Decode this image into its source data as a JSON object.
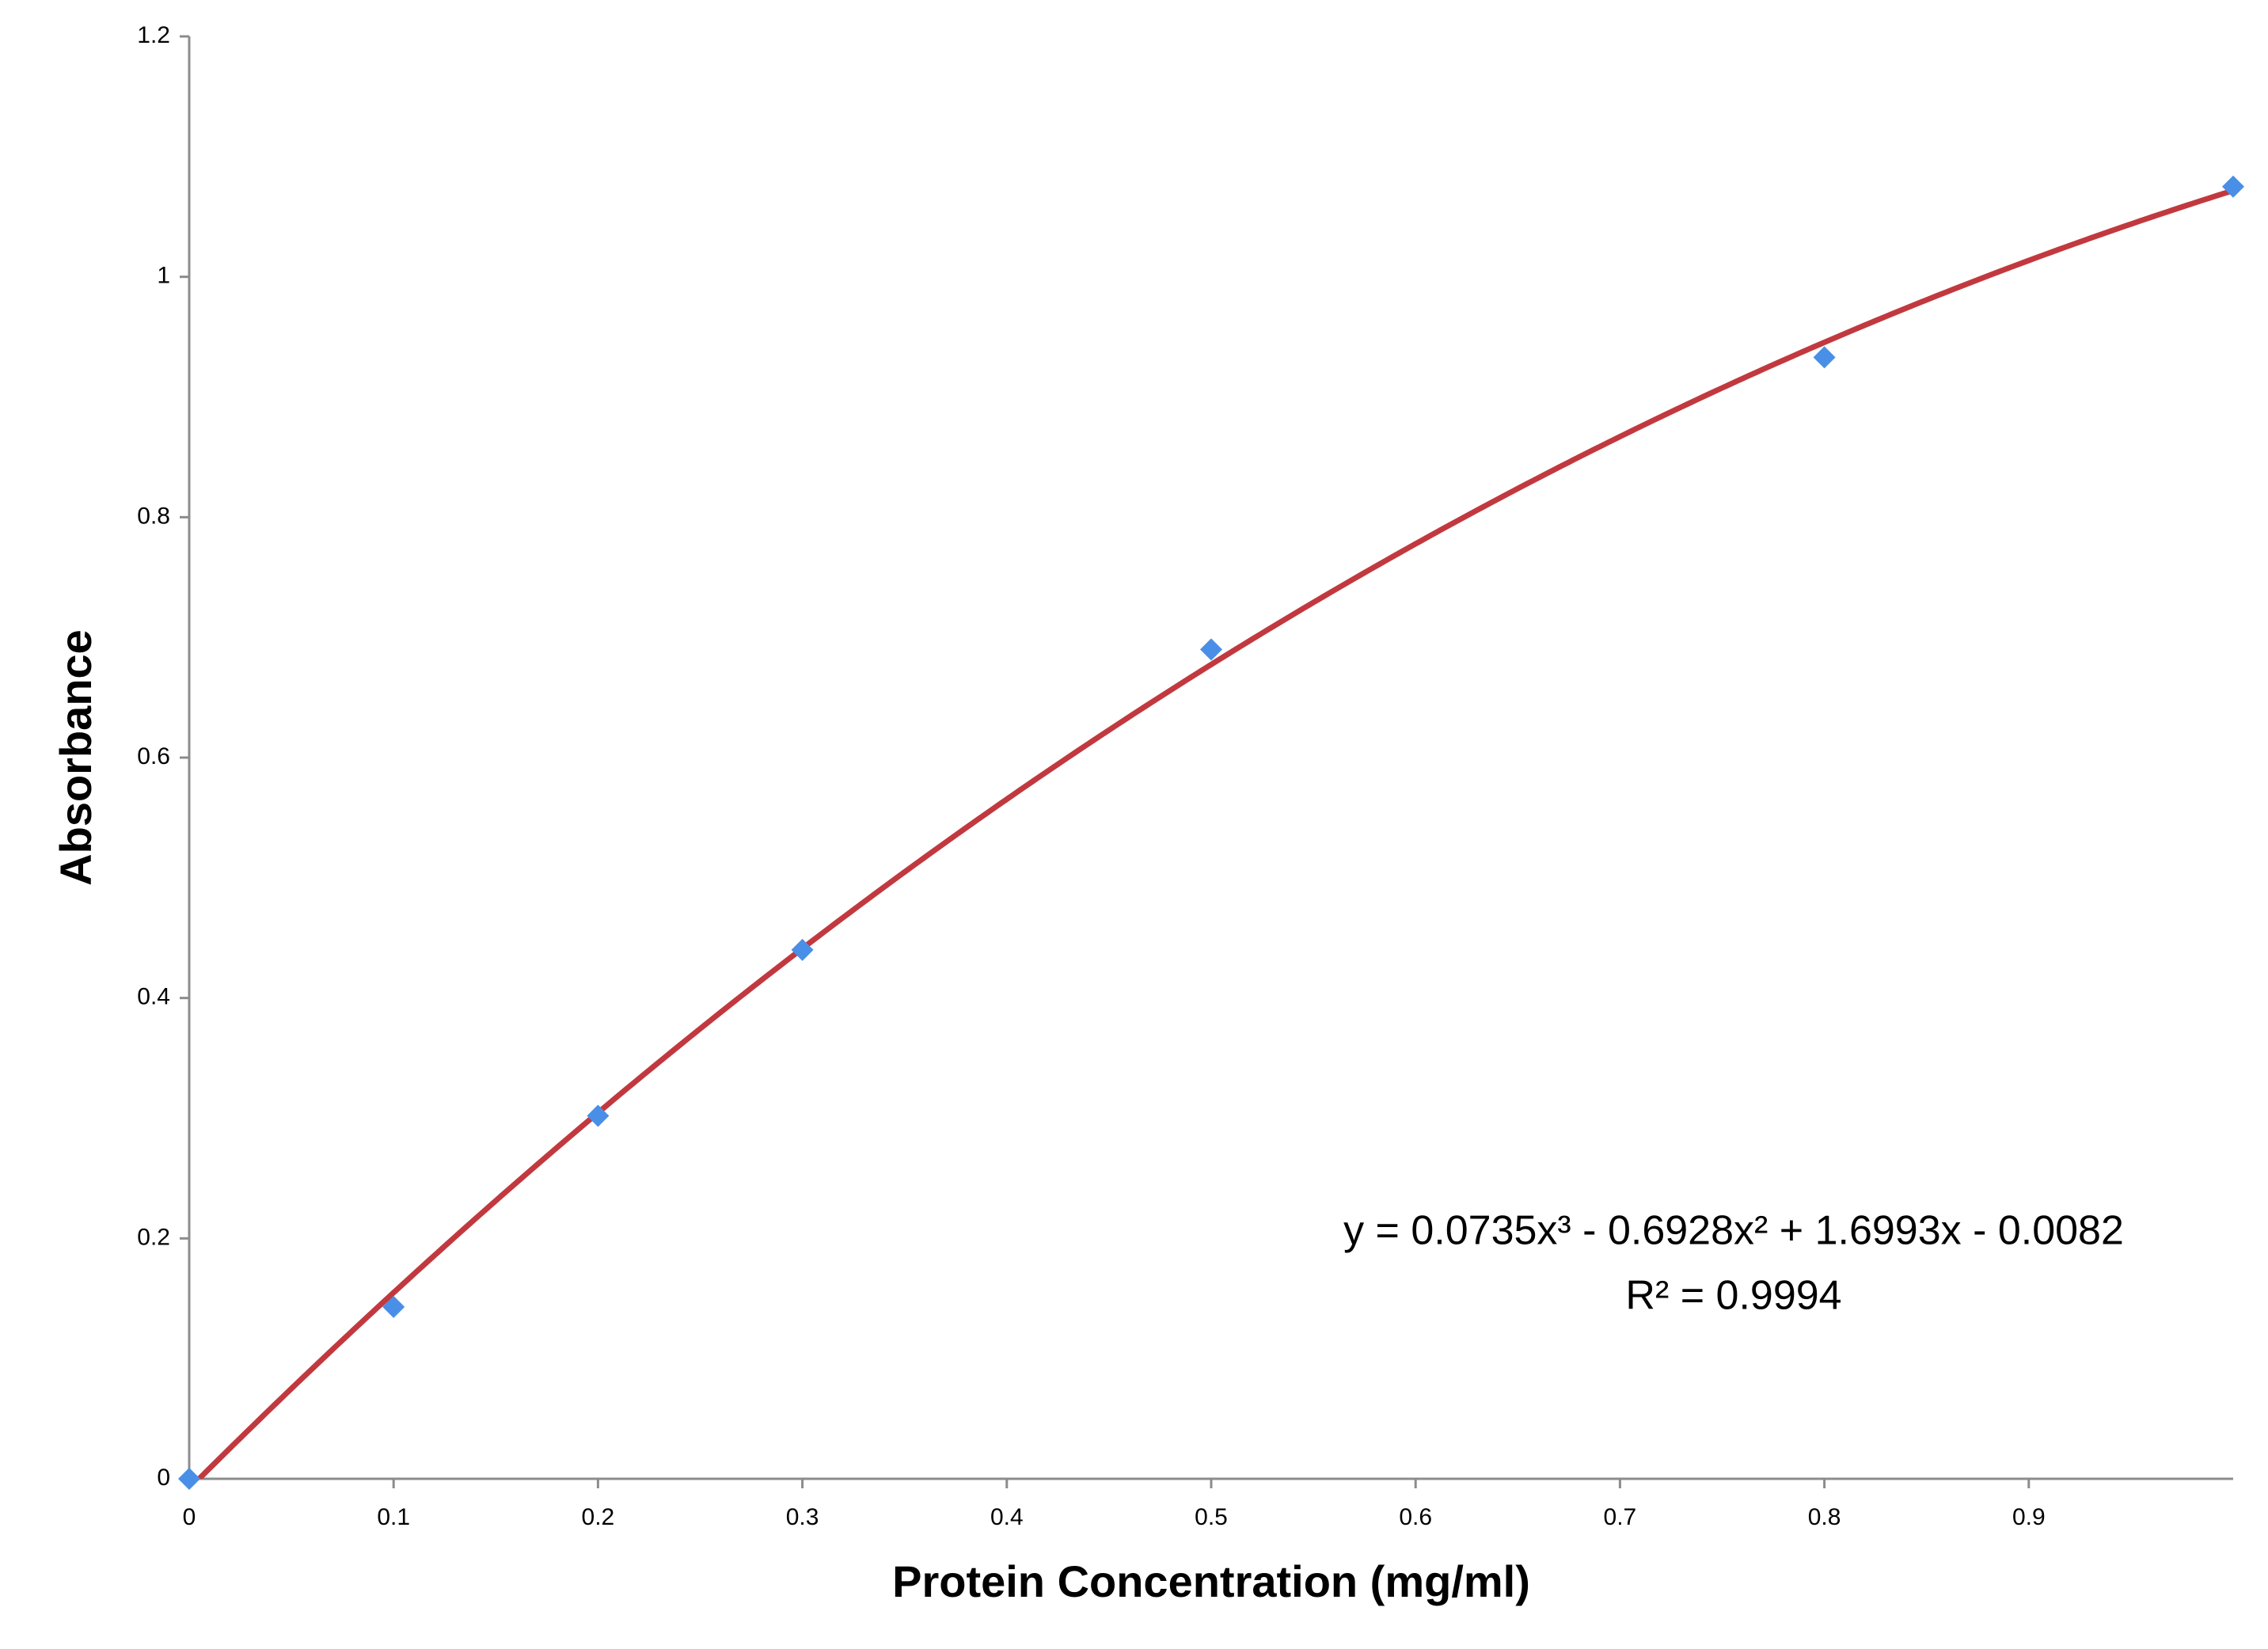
{
  "chart_data": {
    "type": "scatter",
    "x_label": "Protein Concentration (mg/ml)",
    "y_label": "Absorbance",
    "x": [
      0,
      0.1,
      0.2,
      0.3,
      0.5,
      0.8,
      1.0
    ],
    "series": [
      {
        "color": "#4a8fe7",
        "values": [
          0,
          0.143,
          0.302,
          0.44,
          0.69,
          0.933,
          1.075
        ]
      }
    ],
    "trendline": {
      "type": "polynomial",
      "color": "#c1393f",
      "coefficients": [
        0.0735,
        -0.6928,
        1.6993,
        -0.0082
      ],
      "equation": "y = 0.0735x³ - 0.6928x² + 1.6993x - 0.0082",
      "r_squared": "R² = 0.9994"
    },
    "xlim": [
      0,
      1
    ],
    "xticks": [
      0,
      0.1,
      0.2,
      0.3,
      0.4,
      0.5,
      0.6,
      0.7,
      0.8,
      0.9
    ],
    "ylim": [
      0,
      1.2
    ],
    "yticks": [
      0,
      0.2,
      0.4,
      0.6,
      0.8,
      1,
      1.2
    ],
    "grid": false
  }
}
